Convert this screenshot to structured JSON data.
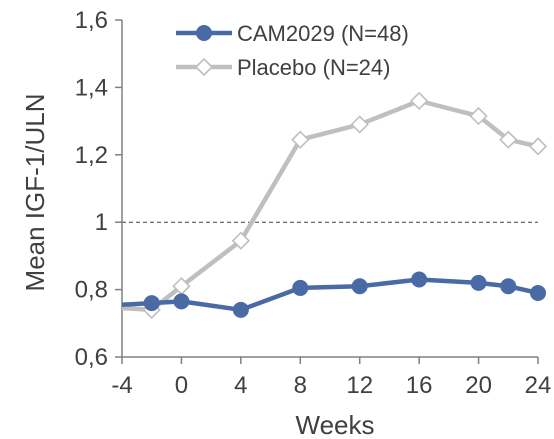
{
  "chart_data": {
    "type": "line",
    "xlabel": "Weeks",
    "ylabel": "Mean IGF-1/ULN",
    "xlim": [
      -4,
      24
    ],
    "ylim": [
      0.6,
      1.6
    ],
    "xticks": [
      -4,
      0,
      4,
      8,
      12,
      16,
      20,
      24
    ],
    "xtick_labels": [
      "-4",
      "0",
      "4",
      "8",
      "12",
      "16",
      "20",
      "24"
    ],
    "yticks": [
      0.6,
      0.8,
      1.0,
      1.2,
      1.4,
      1.6
    ],
    "ytick_labels": [
      "0,6",
      "0,8",
      "1",
      "1,2",
      "1,4",
      "1,6"
    ],
    "reference_line": 1.0,
    "legend_position": "top",
    "series": [
      {
        "name": "CAM2029 (N=48)",
        "color": "#4a6aa5",
        "marker": "filled-circle",
        "x": [
          -4,
          -2,
          0,
          4,
          8,
          12,
          16,
          20,
          22,
          24
        ],
        "y": [
          0.755,
          0.76,
          0.765,
          0.74,
          0.805,
          0.81,
          0.83,
          0.82,
          0.81,
          0.79
        ]
      },
      {
        "name": "Placebo (N=24)",
        "color": "#bfbfbf",
        "marker": "open-diamond",
        "x": [
          -4,
          -2,
          0,
          4,
          8,
          12,
          16,
          20,
          22,
          24
        ],
        "y": [
          0.745,
          0.74,
          0.81,
          0.945,
          1.245,
          1.29,
          1.36,
          1.315,
          1.245,
          1.225
        ]
      }
    ]
  }
}
